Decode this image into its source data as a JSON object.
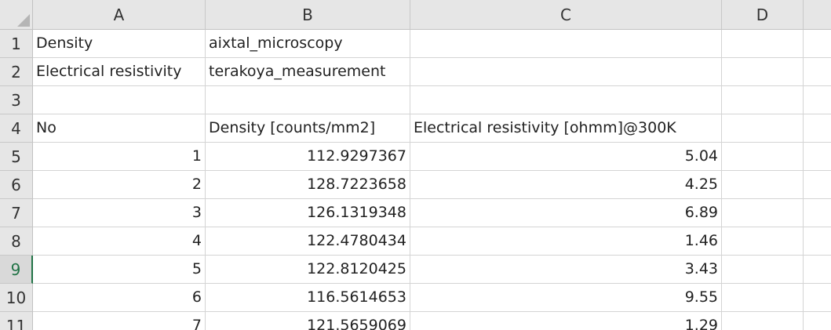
{
  "columns": [
    "A",
    "B",
    "C",
    "D"
  ],
  "row_numbers": [
    "1",
    "2",
    "3",
    "4",
    "5",
    "6",
    "7",
    "8",
    "9",
    "10",
    "11"
  ],
  "active_row": "9",
  "rows": [
    [
      "Density",
      "aixtal_microscopy",
      "",
      ""
    ],
    [
      "Electrical resistivity",
      "terakoya_measurement",
      "",
      ""
    ],
    [
      "",
      "",
      "",
      ""
    ],
    [
      "No",
      "Density [counts/mm2]",
      "Electrical resistivity [ohmm]@300K",
      ""
    ],
    [
      "1",
      "112.9297367",
      "5.04",
      ""
    ],
    [
      "2",
      "128.7223658",
      "4.25",
      ""
    ],
    [
      "3",
      "126.1319348",
      "6.89",
      ""
    ],
    [
      "4",
      "122.4780434",
      "1.46",
      ""
    ],
    [
      "5",
      "122.8120425",
      "3.43",
      ""
    ],
    [
      "6",
      "116.5614653",
      "9.55",
      ""
    ],
    [
      "7",
      "121.5659069",
      "1.29",
      ""
    ]
  ],
  "numeric_rows_from": 4,
  "icons": {
    "select_all": "select-all-triangle-icon"
  },
  "colors": {
    "active_accent": "#217346",
    "header_bg": "#e6e6e6",
    "gridline": "#d4d4d4"
  }
}
